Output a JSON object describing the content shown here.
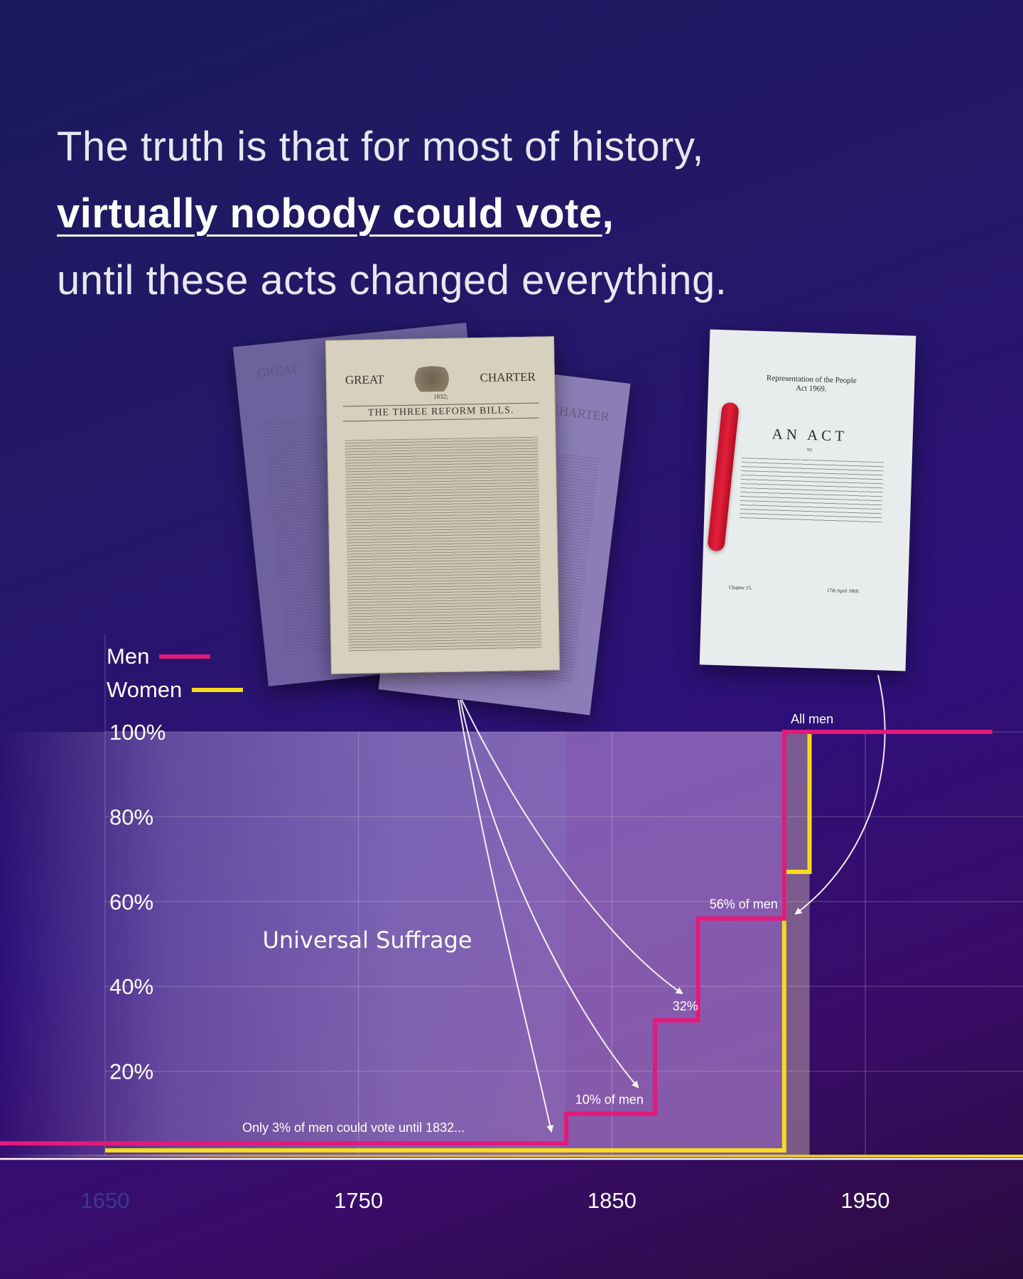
{
  "headline": {
    "line1": "The truth is that for most of history,",
    "line2_emph": "virtually nobody could vote",
    "line2_comma": ",",
    "line3": "until these acts changed everything."
  },
  "documents": {
    "great_charter": {
      "left": "GREAT",
      "right": "CHARTER",
      "year": "1832;",
      "subtitle": "THE THREE REFORM BILLS."
    },
    "act": {
      "title_line1": "Representation of the People",
      "title_line2": "Act 1969.",
      "heading": "AN ACT",
      "to": "TO",
      "chapter": "Chapter 15.",
      "date": "17th April 1969."
    }
  },
  "colors": {
    "men": "#e21a7a",
    "women": "#f5dc1c"
  },
  "chart_data": {
    "type": "line",
    "step": true,
    "series": [
      {
        "name": "Men",
        "points": [
          [
            1650,
            3
          ],
          [
            1832,
            3
          ],
          [
            1832,
            10
          ],
          [
            1867,
            10
          ],
          [
            1867,
            32
          ],
          [
            1884,
            32
          ],
          [
            1884,
            56
          ],
          [
            1918,
            56
          ],
          [
            1918,
            100
          ],
          [
            2000,
            100
          ]
        ]
      },
      {
        "name": "Women",
        "points": [
          [
            1650,
            0
          ],
          [
            1918,
            0
          ],
          [
            1918,
            67
          ],
          [
            1928,
            67
          ],
          [
            1928,
            100
          ],
          [
            2000,
            100
          ]
        ]
      }
    ],
    "x_ticks": [
      "1650",
      "1750",
      "1850",
      "1950"
    ],
    "y_ticks": [
      "100%",
      "80%",
      "60%",
      "40%",
      "20%"
    ],
    "xlim": [
      1650,
      2000
    ],
    "ylim": [
      0,
      100
    ],
    "grid": true,
    "legend_position": "top-left",
    "region_label": "Universal Suffrage",
    "annotations": [
      {
        "text": "Only 3% of men could vote until 1832...",
        "x": 1748,
        "y": 3
      },
      {
        "text": "10% of men",
        "x": 1849,
        "y": 10
      },
      {
        "text": "32%",
        "x": 1879,
        "y": 32
      },
      {
        "text": "56% of men",
        "x": 1902,
        "y": 56
      },
      {
        "text": "All men",
        "x": 1929,
        "y": 100
      }
    ]
  }
}
